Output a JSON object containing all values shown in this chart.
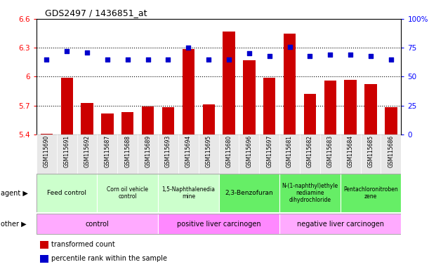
{
  "title": "GDS2497 / 1436851_at",
  "samples": [
    "GSM115690",
    "GSM115691",
    "GSM115692",
    "GSM115687",
    "GSM115688",
    "GSM115689",
    "GSM115693",
    "GSM115694",
    "GSM115695",
    "GSM115680",
    "GSM115696",
    "GSM115697",
    "GSM115681",
    "GSM115682",
    "GSM115683",
    "GSM115684",
    "GSM115685",
    "GSM115686"
  ],
  "transformed_count": [
    5.41,
    5.99,
    5.73,
    5.62,
    5.63,
    5.69,
    5.68,
    6.29,
    5.71,
    6.47,
    6.17,
    5.99,
    6.45,
    5.82,
    5.96,
    5.97,
    5.92,
    5.68
  ],
  "percentile_rank": [
    65,
    72,
    71,
    65,
    65,
    65,
    65,
    75,
    65,
    65,
    70,
    68,
    76,
    68,
    69,
    69,
    68,
    65
  ],
  "ylim_left": [
    5.4,
    6.6
  ],
  "ylim_right": [
    0,
    100
  ],
  "yticks_left": [
    5.4,
    5.7,
    6.0,
    6.3,
    6.6
  ],
  "ytick_labels_left": [
    "5.4",
    "5.7",
    "6",
    "6.3",
    "6.6"
  ],
  "yticks_right": [
    0,
    25,
    50,
    75,
    100
  ],
  "ytick_labels_right": [
    "0",
    "25",
    "50",
    "75",
    "100%"
  ],
  "hlines": [
    5.7,
    6.0,
    6.3
  ],
  "bar_color": "#CC0000",
  "dot_color": "#0000CC",
  "agent_groups": [
    {
      "label": "Feed control",
      "start": 0,
      "end": 3,
      "color": "#ccffcc"
    },
    {
      "label": "Corn oil vehicle\ncontrol",
      "start": 3,
      "end": 6,
      "color": "#ccffcc"
    },
    {
      "label": "1,5-Naphthalenedia\nmine",
      "start": 6,
      "end": 9,
      "color": "#ccffcc"
    },
    {
      "label": "2,3-Benzofuran",
      "start": 9,
      "end": 12,
      "color": "#66ee66"
    },
    {
      "label": "N-(1-naphthyl)ethyle\nnediamine\ndihydrochloride",
      "start": 12,
      "end": 15,
      "color": "#66ee66"
    },
    {
      "label": "Pentachloronitroben\nzene",
      "start": 15,
      "end": 18,
      "color": "#66ee66"
    }
  ],
  "other_groups": [
    {
      "label": "control",
      "start": 0,
      "end": 6,
      "color": "#ffaaff"
    },
    {
      "label": "positive liver carcinogen",
      "start": 6,
      "end": 12,
      "color": "#ff88ff"
    },
    {
      "label": "negative liver carcinogen",
      "start": 12,
      "end": 18,
      "color": "#ffaaff"
    }
  ],
  "agent_row_label": "agent",
  "other_row_label": "other",
  "legend_bar_label": "transformed count",
  "legend_dot_label": "percentile rank within the sample",
  "bg_color": "#e8e8e8"
}
